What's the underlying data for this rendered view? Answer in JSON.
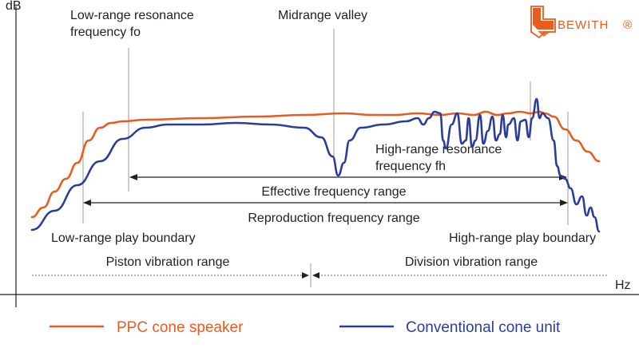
{
  "chart_data": {
    "type": "line",
    "ylabel": "dB",
    "xlabel": "Hz",
    "grid": false,
    "series": [
      {
        "name": "PPC cone speaker",
        "color": "#e95c1f",
        "points": [
          [
            0,
            12
          ],
          [
            2,
            18
          ],
          [
            4,
            28
          ],
          [
            6,
            36
          ],
          [
            8,
            46
          ],
          [
            10,
            60
          ],
          [
            12,
            68
          ],
          [
            14,
            71
          ],
          [
            16,
            72
          ],
          [
            20,
            73
          ],
          [
            30,
            74
          ],
          [
            40,
            75
          ],
          [
            48,
            76
          ],
          [
            55,
            77
          ],
          [
            60,
            76
          ],
          [
            64,
            76
          ],
          [
            68,
            77
          ],
          [
            72,
            76
          ],
          [
            75,
            77
          ],
          [
            78,
            76
          ],
          [
            80,
            78
          ],
          [
            82,
            76
          ],
          [
            84,
            77
          ],
          [
            86,
            78
          ],
          [
            88,
            77
          ],
          [
            89.5,
            78
          ],
          [
            90.5,
            77
          ],
          [
            92,
            75
          ],
          [
            94,
            67
          ],
          [
            96,
            60
          ],
          [
            98,
            53
          ],
          [
            100,
            47
          ]
        ]
      },
      {
        "name": "Conventional cone unit",
        "color": "#2b3d9b",
        "points": [
          [
            0,
            4
          ],
          [
            4,
            16
          ],
          [
            8,
            32
          ],
          [
            12,
            47
          ],
          [
            16,
            61
          ],
          [
            20,
            68
          ],
          [
            24,
            70
          ],
          [
            30,
            70
          ],
          [
            36,
            71
          ],
          [
            42,
            70
          ],
          [
            48,
            68
          ],
          [
            51,
            62
          ],
          [
            53,
            50
          ],
          [
            54,
            38
          ],
          [
            55,
            46
          ],
          [
            56,
            60
          ],
          [
            58,
            68
          ],
          [
            62,
            70
          ],
          [
            66,
            72
          ],
          [
            68,
            74
          ],
          [
            69,
            70
          ],
          [
            70,
            74
          ],
          [
            71,
            78
          ],
          [
            72,
            77
          ],
          [
            72.5,
            60
          ],
          [
            73,
            55
          ],
          [
            74,
            70
          ],
          [
            75,
            77
          ],
          [
            75.8,
            58
          ],
          [
            76.5,
            60
          ],
          [
            77,
            74
          ],
          [
            77.6,
            56
          ],
          [
            78.2,
            60
          ],
          [
            79,
            76
          ],
          [
            79.6,
            58
          ],
          [
            80.4,
            66
          ],
          [
            81.2,
            75
          ],
          [
            81.8,
            60
          ],
          [
            82.5,
            64
          ],
          [
            83,
            76
          ],
          [
            83.6,
            62
          ],
          [
            84,
            70
          ],
          [
            85,
            74
          ],
          [
            85.6,
            60
          ],
          [
            86.2,
            72
          ],
          [
            87,
            73
          ],
          [
            87.6,
            62
          ],
          [
            88.2,
            74
          ],
          [
            89,
            86
          ],
          [
            89.5,
            74
          ],
          [
            90,
            77
          ],
          [
            91,
            74
          ],
          [
            92,
            60
          ],
          [
            92.6,
            44
          ],
          [
            93.2,
            38
          ],
          [
            94,
            36
          ],
          [
            95,
            30
          ],
          [
            96,
            20
          ],
          [
            97,
            25
          ],
          [
            97.8,
            13
          ],
          [
            98.5,
            18
          ],
          [
            99.2,
            12
          ],
          [
            100,
            3
          ]
        ]
      }
    ],
    "annotations": {
      "low_resonance": "Low-range resonance frequency fo",
      "low_resonance_line1": "Low-range resonance",
      "low_resonance_line2": "frequency fo",
      "midrange_valley": "Midrange valley",
      "high_resonance_line1": "High-range resonance",
      "high_resonance_line2": "frequency fh",
      "effective_range": "Effective frequency range",
      "reproduction_range": "Reproduction frequency range",
      "low_play_boundary": "Low-range play boundary",
      "high_play_boundary": "High-range play boundary",
      "piston_range": "Piston vibration range",
      "division_range": "Division vibration range"
    }
  },
  "brand": {
    "name": "BEWITH",
    "mark": "®"
  }
}
